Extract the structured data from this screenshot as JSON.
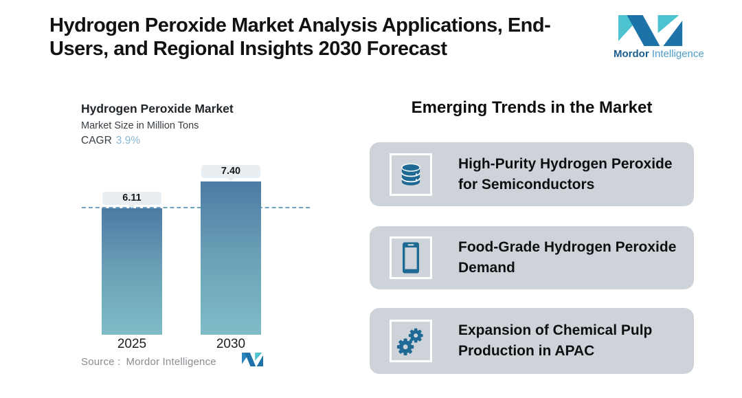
{
  "header": {
    "title_lines": [
      "Hydrogen Peroxide Market Analysis Applications, End-",
      "Users, and Regional Insights 2030 Forecast"
    ],
    "brand": {
      "name_bold": "Mordor",
      "name_light": "Intelligence"
    }
  },
  "chart": {
    "title": "Hydrogen Peroxide Market",
    "subtitle": "Market Size in Million Tons",
    "cagr_label": "CAGR",
    "cagr_value": "3.9%",
    "source_label": "Source :",
    "source_value": "Mordor Intelligence"
  },
  "chart_data": {
    "type": "bar",
    "title": "Hydrogen Peroxide Market",
    "ylabel": "Market Size in Million Tons",
    "cagr": "3.9%",
    "categories": [
      "2025",
      "2030"
    ],
    "values": [
      6.11,
      7.4
    ],
    "labels": [
      "6.11",
      "7.40"
    ],
    "reference_line": 6.11,
    "grid": "off",
    "legend": "none",
    "bar_gradient": [
      "#4d7aa4",
      "#7fbcc8"
    ],
    "source": "Mordor Intelligence"
  },
  "trends": {
    "heading": "Emerging Trends in the Market",
    "items": [
      {
        "icon": "database-icon",
        "text": "High-Purity Hydrogen Peroxide for Semiconductors"
      },
      {
        "icon": "smartphone-icon",
        "text": "Food-Grade Hydrogen Peroxide Demand"
      },
      {
        "icon": "gears-icon",
        "text": "Expansion of Chemical Pulp Production in APAC"
      }
    ]
  },
  "colors": {
    "brand_teal": "#4cc3cf",
    "brand_blue": "#1d72a8",
    "icon_teal": "#1e6a94",
    "card_bg": "#ced3da",
    "bar_top": "#4d7aa4",
    "bar_bottom": "#7fbcc8",
    "cagr_blue": "#8ab5d3",
    "pill_bg": "#e8eef2",
    "dash_line": "#6fa3c6"
  }
}
